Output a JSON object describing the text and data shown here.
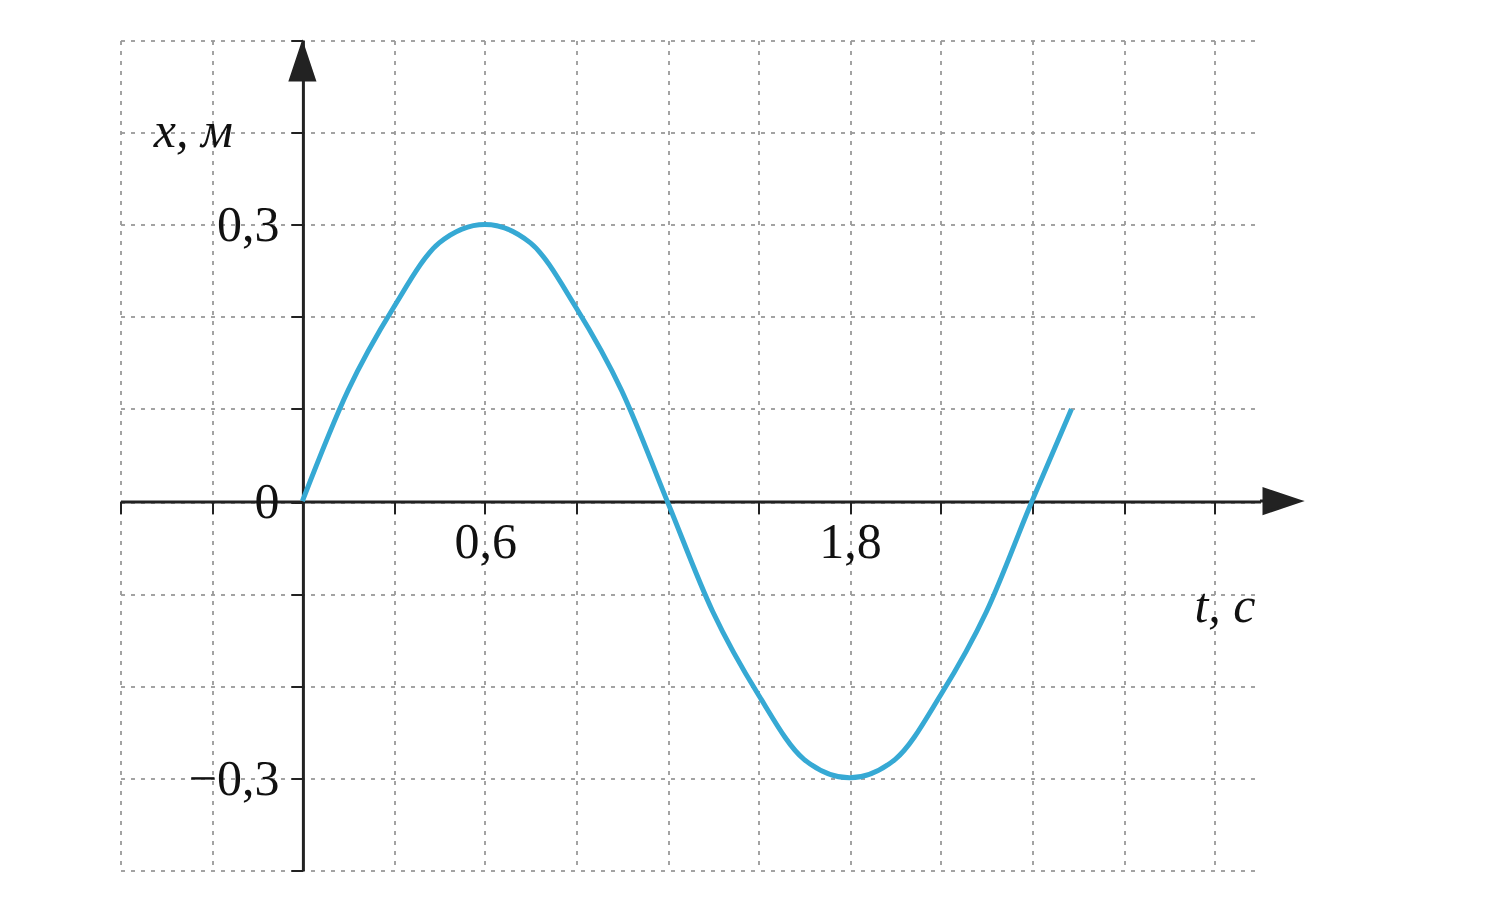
{
  "chart_data": {
    "type": "line",
    "xlabel": "t, с",
    "ylabel": "x, м",
    "x": [
      0,
      0.15,
      0.3,
      0.45,
      0.6,
      0.75,
      0.9,
      1.05,
      1.2,
      1.35,
      1.5,
      1.65,
      1.8,
      1.95,
      2.1,
      2.25,
      2.4,
      2.53
    ],
    "series": [
      {
        "color": "#36a9d4",
        "values": [
          0,
          0.12,
          0.21,
          0.28,
          0.3,
          0.28,
          0.21,
          0.12,
          0,
          -0.12,
          -0.21,
          -0.28,
          -0.3,
          -0.28,
          -0.21,
          -0.12,
          0,
          0.1
        ]
      }
    ],
    "xlim": [
      -0.6,
      3.15
    ],
    "ylim": [
      -0.4,
      0.5
    ],
    "xticks": [
      {
        "value": -0.6,
        "label": null
      },
      {
        "value": -0.3,
        "label": null
      },
      {
        "value": 0.3,
        "label": null
      },
      {
        "value": 0.6,
        "label": "0,6"
      },
      {
        "value": 0.9,
        "label": null
      },
      {
        "value": 1.2,
        "label": null
      },
      {
        "value": 1.5,
        "label": null
      },
      {
        "value": 1.8,
        "label": "1,8"
      },
      {
        "value": 2.1,
        "label": null
      },
      {
        "value": 2.4,
        "label": null
      },
      {
        "value": 2.7,
        "label": null
      },
      {
        "value": 3.0,
        "label": null
      }
    ],
    "yticks": [
      {
        "value": -0.4,
        "label": null
      },
      {
        "value": -0.3,
        "label": "−0,3"
      },
      {
        "value": -0.2,
        "label": null
      },
      {
        "value": -0.1,
        "label": null
      },
      {
        "value": 0,
        "label": "0"
      },
      {
        "value": 0.1,
        "label": null
      },
      {
        "value": 0.2,
        "label": null
      },
      {
        "value": 0.3,
        "label": "0,3"
      },
      {
        "value": 0.4,
        "label": null
      },
      {
        "value": 0.5,
        "label": null
      }
    ],
    "grid": true,
    "marker": "none",
    "line_style": "solid"
  }
}
